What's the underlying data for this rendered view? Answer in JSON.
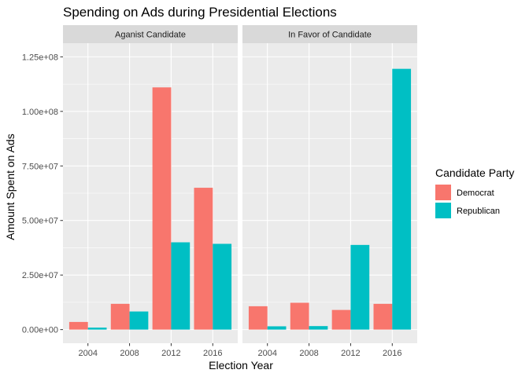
{
  "chart_data": {
    "type": "bar",
    "title": "Spending on Ads during Presidential Elections",
    "xlabel": "Election Year",
    "ylabel": "Amount Spent on Ads",
    "categories": [
      "2004",
      "2008",
      "2012",
      "2016"
    ],
    "ylim": [
      0,
      125000000
    ],
    "yticks": [
      0,
      25000000,
      50000000,
      75000000,
      100000000,
      125000000
    ],
    "ytick_labels": [
      "0.00e+00",
      "2.50e+07",
      "5.00e+07",
      "7.50e+07",
      "1.00e+08",
      "1.25e+08"
    ],
    "grid": true,
    "legend": {
      "title": "Candidate Party",
      "position": "right",
      "entries": [
        {
          "name": "Democrat",
          "color": "#F8766D"
        },
        {
          "name": "Republican",
          "color": "#00BFC4"
        }
      ]
    },
    "facets": [
      {
        "label": "Aganist Candidate",
        "series": [
          {
            "name": "Democrat",
            "values": [
              3500000,
              11800000,
              111000000,
              65000000
            ]
          },
          {
            "name": "Republican",
            "values": [
              900000,
              8300000,
              40000000,
              39300000
            ]
          }
        ]
      },
      {
        "label": "In Favor of Candidate",
        "series": [
          {
            "name": "Democrat",
            "values": [
              10700000,
              12300000,
              9000000,
              11800000
            ]
          },
          {
            "name": "Republican",
            "values": [
              1500000,
              1600000,
              38800000,
              119500000
            ]
          }
        ]
      }
    ]
  }
}
